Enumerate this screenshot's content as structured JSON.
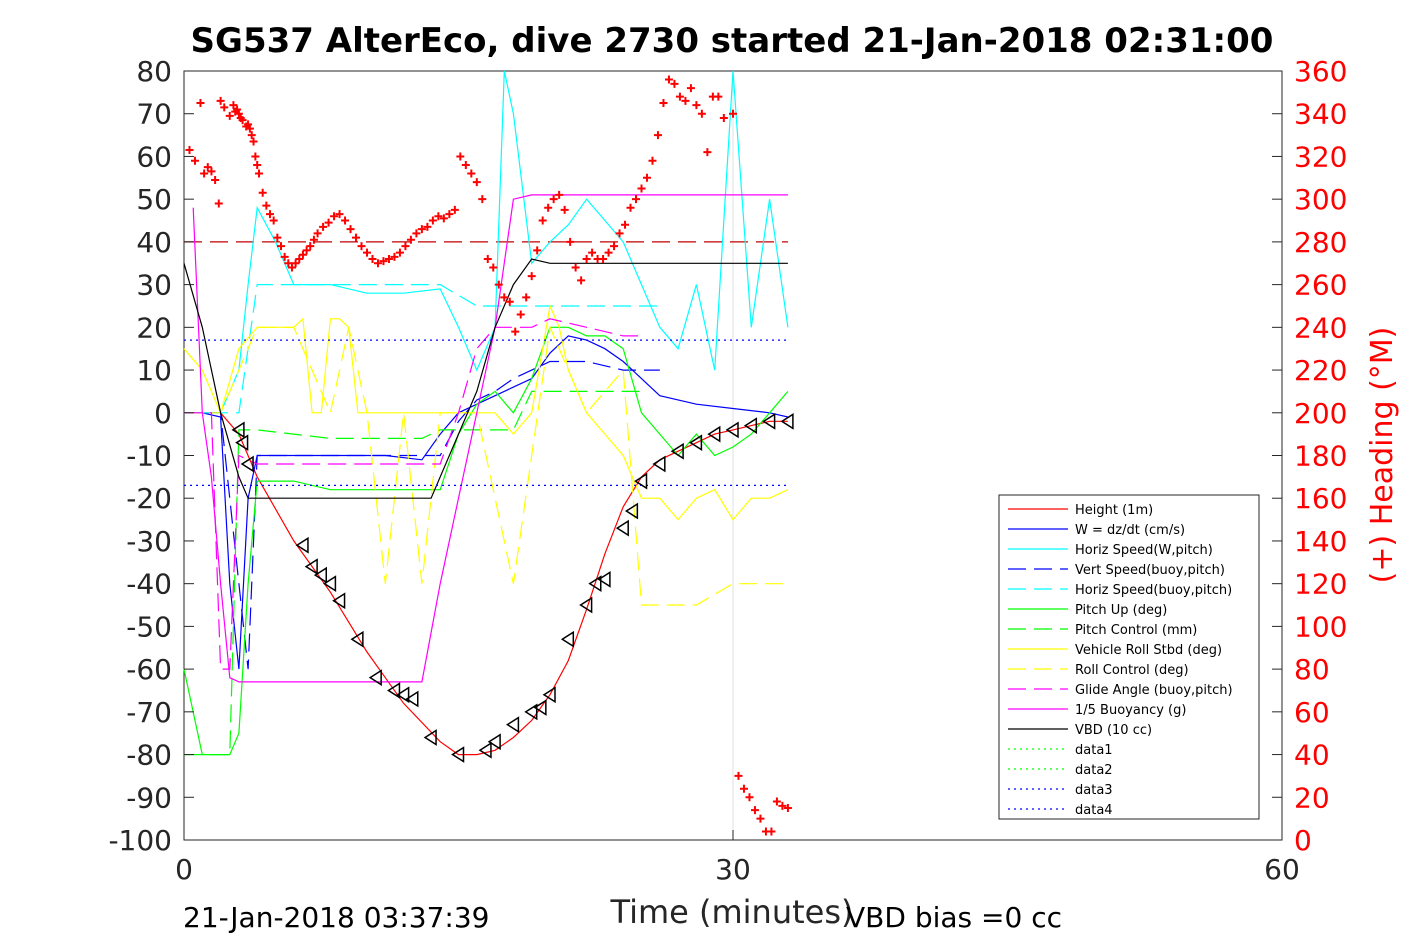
{
  "chart_data": {
    "type": "line",
    "title": "SG537 AlterEco, dive 2730 started 21-Jan-2018 02:31:00",
    "xlabel": "Time (minutes)",
    "ylabel_right": "(+) Heading (°M)",
    "xlim": [
      0,
      60
    ],
    "ylim": [
      -100,
      80
    ],
    "ylim_right": [
      0,
      360
    ],
    "x_ticks": [
      "0",
      "30",
      "60"
    ],
    "y_ticks": [
      "80",
      "70",
      "60",
      "50",
      "40",
      "30",
      "20",
      "10",
      "0",
      "-10",
      "-20",
      "-30",
      "-40",
      "-50",
      "-60",
      "-70",
      "-80",
      "-90",
      "-100"
    ],
    "y_ticks_right": [
      "360",
      "340",
      "320",
      "300",
      "280",
      "260",
      "240",
      "220",
      "200",
      "180",
      "160",
      "140",
      "120",
      "100",
      "80",
      "60",
      "40",
      "20",
      "0"
    ],
    "grid": "x=30 only",
    "legend_position": "lower-right",
    "footer_left": "21-Jan-2018 03:37:39",
    "footer_right": "VBD bias =0 cc",
    "colors": {
      "height": "#ff0000",
      "w": "#0000ff",
      "horiz_w": "#00ffff",
      "vert_buoy": "#0000ff",
      "horiz_buoy": "#00ffff",
      "pitch": "#00ff00",
      "pitch_ctrl": "#00ff00",
      "roll": "#ffff00",
      "roll_ctrl": "#ffff00",
      "glide": "#ff00ff",
      "buoy": "#ff00ff",
      "vbd": "#000000",
      "heading": "#ff0000",
      "data4": "#0000ff",
      "ref40": "#c00000"
    },
    "series": [
      {
        "name": "Height (1m)",
        "key": "height",
        "style": "solid",
        "x": [
          0,
          2,
          3,
          4,
          6,
          8,
          10,
          12,
          14,
          15,
          16,
          17,
          18,
          19,
          20,
          21,
          22,
          23,
          24,
          25,
          26,
          27,
          28,
          29,
          30,
          31,
          32,
          33
        ],
        "y": [
          0,
          0,
          -5,
          -15,
          -30,
          -42,
          -56,
          -68,
          -77,
          -80,
          -80,
          -79,
          -76,
          -72,
          -66,
          -58,
          -46,
          -33,
          -22,
          -15,
          -11,
          -9,
          -7,
          -5,
          -4,
          -3,
          -2,
          -2
        ]
      },
      {
        "name": "W = dz/dt (cm/s)",
        "key": "w",
        "style": "solid",
        "x": [
          0,
          1,
          2,
          2.5,
          3,
          3.5,
          4,
          5,
          8,
          11,
          13,
          14,
          15,
          16,
          17,
          18,
          19,
          20,
          21,
          22,
          23,
          24,
          25,
          26,
          28,
          30,
          32,
          33
        ],
        "y": [
          0,
          0,
          -1,
          -40,
          -60,
          -20,
          -10,
          -10,
          -10,
          -10,
          -11,
          -5,
          0,
          2,
          4,
          6,
          8,
          14,
          18,
          17,
          15,
          12,
          8,
          4,
          2,
          1,
          0,
          -1
        ]
      },
      {
        "name": "Horiz Speed(W,pitch)",
        "key": "horiz_w",
        "style": "solid",
        "x": [
          0,
          2,
          3,
          3.5,
          4,
          5,
          6,
          8,
          10,
          12,
          14,
          15,
          16,
          17,
          17.5,
          18,
          19,
          20,
          21,
          22,
          23,
          24,
          25,
          26,
          27,
          28,
          29,
          30,
          31,
          32,
          33
        ],
        "y": [
          0,
          0,
          10,
          30,
          48,
          40,
          30,
          30,
          28,
          28,
          29,
          20,
          10,
          20,
          80,
          70,
          35,
          40,
          44,
          50,
          45,
          40,
          30,
          20,
          15,
          30,
          10,
          80,
          20,
          50,
          20
        ]
      },
      {
        "name": "Vert Speed(buoy,pitch)",
        "key": "vert_buoy",
        "style": "dashed",
        "x": [
          0,
          2,
          3,
          3.5,
          4,
          6,
          8,
          10,
          12,
          14,
          15,
          16,
          17,
          18,
          19,
          20,
          21,
          22,
          23,
          24,
          25,
          26
        ],
        "y": [
          0,
          0,
          -40,
          -60,
          -10,
          -10,
          -10,
          -10,
          -10,
          -10,
          -2,
          3,
          5,
          8,
          10,
          12,
          12,
          12,
          11,
          10,
          10,
          10
        ]
      },
      {
        "name": "Horiz Speed(buoy,pitch)",
        "key": "horiz_buoy",
        "style": "dashed",
        "x": [
          0,
          3,
          4,
          6,
          8,
          10,
          12,
          14,
          16,
          18,
          20,
          22,
          24,
          25,
          26
        ],
        "y": [
          0,
          0,
          30,
          30,
          30,
          30,
          30,
          30,
          25,
          25,
          25,
          25,
          25,
          25,
          25
        ]
      },
      {
        "name": "Pitch Up (deg)",
        "key": "pitch",
        "style": "solid",
        "x": [
          0,
          1,
          2,
          2.5,
          3,
          3.5,
          4,
          6,
          8,
          10,
          12,
          14,
          15,
          16,
          17,
          18,
          19,
          20,
          21,
          22,
          23,
          24,
          25,
          26,
          27,
          28,
          29,
          30,
          31,
          32,
          33
        ],
        "y": [
          -60,
          -80,
          -80,
          -80,
          -75,
          -40,
          -16,
          -16,
          -18,
          -18,
          -18,
          -18,
          -5,
          2,
          5,
          0,
          8,
          20,
          20,
          18,
          18,
          15,
          0,
          -5,
          -10,
          -5,
          -10,
          -8,
          -5,
          0,
          5
        ]
      },
      {
        "name": "Pitch Control (mm)",
        "key": "pitch_ctrl",
        "style": "dashed",
        "x": [
          0,
          2,
          2.5,
          3,
          4,
          8,
          13,
          14,
          16,
          17,
          18,
          19,
          20,
          24,
          25
        ],
        "y": [
          -80,
          -80,
          -80,
          -4,
          -4,
          -6,
          -6,
          -4,
          -4,
          -4,
          -4,
          5,
          5,
          5,
          5
        ]
      },
      {
        "name": "Vehicle Roll Stbd (deg)",
        "key": "roll",
        "style": "solid",
        "x": [
          0,
          1,
          2,
          3,
          4,
          5,
          6,
          6.5,
          7,
          7.5,
          8,
          8.5,
          9,
          9.5,
          10,
          10.5,
          11,
          12,
          13,
          14,
          15,
          16,
          17,
          18,
          19,
          20,
          20.5,
          21,
          22,
          23,
          24,
          25,
          26,
          27,
          28,
          29,
          30,
          31,
          32,
          33
        ],
        "y": [
          15,
          10,
          0,
          15,
          20,
          20,
          20,
          22,
          0,
          0,
          22,
          22,
          20,
          0,
          0,
          0,
          0,
          0,
          0,
          0,
          0,
          0,
          0,
          -5,
          0,
          25,
          20,
          10,
          0,
          -5,
          -10,
          -20,
          -20,
          -25,
          -20,
          -18,
          -25,
          -20,
          -20,
          -18
        ]
      },
      {
        "name": "Roll Control (deg)",
        "key": "roll_ctrl",
        "style": "dashed",
        "x": [
          0,
          2,
          3,
          4,
          6,
          8,
          9,
          10,
          11,
          12,
          13,
          14,
          16,
          18,
          20,
          22,
          24,
          25,
          26,
          28,
          30,
          32,
          33
        ],
        "y": [
          0,
          0,
          10,
          20,
          20,
          0,
          20,
          0,
          -40,
          0,
          -40,
          0,
          0,
          -40,
          20,
          0,
          10,
          -45,
          -45,
          -45,
          -40,
          -40,
          -40
        ]
      },
      {
        "name": "Glide Angle (buoy,pitch)",
        "key": "glide",
        "style": "dashed",
        "x": [
          0,
          1.5,
          2,
          2.5,
          3,
          4,
          8,
          12,
          14,
          15,
          16,
          17,
          18,
          19,
          20,
          22,
          24,
          25
        ],
        "y": [
          0,
          0,
          -60,
          -60,
          -10,
          -12,
          -12,
          -12,
          -12,
          0,
          15,
          20,
          20,
          20,
          22,
          20,
          18,
          18
        ]
      },
      {
        "name": "1/5 Buoyancy (g)",
        "key": "buoy",
        "style": "solid",
        "x": [
          0.5,
          1,
          1.5,
          2,
          2.5,
          3,
          4,
          8,
          12,
          13,
          14,
          15,
          16,
          17,
          18,
          19,
          20,
          22,
          24,
          26,
          28,
          30,
          33
        ],
        "y": [
          48,
          0,
          -15,
          -40,
          -62,
          -63,
          -63,
          -63,
          -63,
          -63,
          -40,
          -20,
          0,
          20,
          50,
          51,
          51,
          51,
          51,
          51,
          51,
          51,
          51
        ]
      },
      {
        "name": "VBD (10 cc)",
        "key": "vbd",
        "style": "solid",
        "x": [
          0,
          1,
          2,
          3,
          3.5,
          4,
          8,
          12,
          13.5,
          15,
          16,
          17,
          18,
          19,
          20,
          22,
          24,
          26,
          28,
          30,
          33
        ],
        "y": [
          35,
          20,
          0,
          -15,
          -20,
          -20,
          -20,
          -20,
          -20,
          -5,
          5,
          20,
          30,
          36,
          35,
          35,
          35,
          35,
          35,
          35,
          35
        ]
      },
      {
        "name": "data1",
        "key": "data1",
        "style": "dotted",
        "x": [],
        "y": []
      },
      {
        "name": "data2",
        "key": "data2",
        "style": "dotted",
        "x": [],
        "y": []
      },
      {
        "name": "data3",
        "key": "data3",
        "style": "dotted",
        "x": [],
        "y": []
      },
      {
        "name": "data4",
        "key": "data4",
        "style": "dotted",
        "x": [
          0,
          33
        ],
        "y": [
          17,
          17
        ],
        "x2": [
          0,
          33
        ],
        "y2": [
          -17,
          -17
        ]
      }
    ],
    "reference_lines": [
      {
        "key": "ref40",
        "style": "dashed",
        "x": [
          0,
          33
        ],
        "y": [
          40,
          40
        ]
      }
    ],
    "heading_points": {
      "x": [
        0.3,
        0.6,
        0.9,
        1.1,
        1.3,
        1.5,
        1.7,
        1.9,
        2.0,
        2.2,
        2.5,
        2.7,
        2.8,
        2.9,
        3.0,
        3.1,
        3.2,
        3.4,
        3.5,
        3.6,
        3.7,
        3.8,
        3.9,
        4.0,
        4.1,
        4.3,
        4.5,
        4.7,
        4.9,
        5.1,
        5.3,
        5.5,
        5.7,
        5.9,
        6.1,
        6.3,
        6.5,
        6.7,
        6.9,
        7.1,
        7.3,
        7.6,
        7.9,
        8.2,
        8.5,
        8.8,
        9.1,
        9.4,
        9.7,
        10.0,
        10.3,
        10.6,
        10.9,
        11.2,
        11.5,
        11.8,
        12.1,
        12.4,
        12.7,
        13.0,
        13.3,
        13.6,
        13.9,
        14.2,
        14.5,
        14.8,
        15.1,
        15.4,
        15.7,
        16.0,
        16.3,
        16.6,
        16.9,
        17.2,
        17.5,
        17.8,
        18.1,
        18.4,
        18.7,
        19.0,
        19.3,
        19.6,
        19.9,
        20.2,
        20.5,
        20.8,
        21.1,
        21.4,
        21.7,
        22.0,
        22.3,
        22.6,
        22.9,
        23.2,
        23.5,
        23.8,
        24.1,
        24.4,
        24.7,
        25.0,
        25.3,
        25.6,
        25.9,
        26.2,
        26.5,
        26.8,
        27.1,
        27.4,
        27.7,
        28.0,
        28.3,
        28.6,
        28.9,
        29.2,
        29.5,
        30.0,
        30.3,
        30.6,
        30.9,
        31.2,
        31.5,
        31.8,
        32.1,
        32.4,
        32.7,
        33.0
      ],
      "y": [
        323,
        318,
        345,
        312,
        315,
        313,
        309,
        298,
        346,
        343,
        339,
        344,
        341,
        342,
        340,
        338,
        337,
        334,
        335,
        333,
        330,
        327,
        320,
        316,
        312,
        303,
        297,
        293,
        290,
        282,
        278,
        273,
        270,
        268,
        270,
        272,
        274,
        276,
        278,
        281,
        284,
        287,
        289,
        292,
        293,
        290,
        286,
        282,
        278,
        275,
        272,
        270,
        271,
        272,
        273,
        275,
        278,
        281,
        284,
        286,
        287,
        290,
        292,
        291,
        293,
        295,
        320,
        316,
        312,
        308,
        300,
        272,
        268,
        260,
        254,
        252,
        238,
        246,
        254,
        264,
        276,
        290,
        296,
        300,
        302,
        295,
        280,
        268,
        262,
        272,
        275,
        272,
        272,
        275,
        278,
        284,
        288,
        296,
        300,
        305,
        310,
        318,
        330,
        345,
        356,
        354,
        348,
        346,
        352,
        344,
        340,
        322,
        348,
        348,
        338,
        340,
        30,
        24,
        20,
        14,
        10,
        4,
        4,
        18,
        16,
        15
      ],
      "y_units": "deg"
    },
    "dive_markers": {
      "x": [
        3.0,
        3.2,
        3.5,
        6.5,
        7.0,
        7.5,
        8.0,
        8.5,
        9.5,
        10.5,
        11.5,
        12.0,
        12.5,
        13.5,
        15,
        16.5,
        17,
        18,
        19,
        19.5,
        20,
        21,
        22,
        22.5,
        23,
        24,
        24.5,
        25,
        26,
        27,
        28,
        29,
        30,
        31,
        32,
        33
      ],
      "y": [
        -4,
        -7,
        -12,
        -31,
        -36,
        -38,
        -40,
        -44,
        -53,
        -62,
        -65,
        -66,
        -67,
        -76,
        -80,
        -79,
        -77,
        -73,
        -70,
        -69,
        -66,
        -53,
        -45,
        -40,
        -39,
        -27,
        -23,
        -16,
        -12,
        -9,
        -7,
        -5,
        -4,
        -3,
        -2,
        -2
      ]
    }
  }
}
